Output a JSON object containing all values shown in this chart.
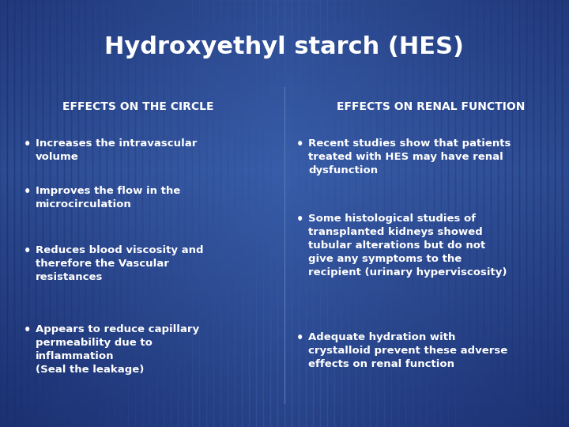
{
  "title": "Hydroxyethyl starch (HES)",
  "title_fontsize": 22,
  "title_color": "#FFFFFF",
  "title_fontweight": "bold",
  "left_header": "EFFECTS ON THE CIRCLE",
  "right_header": "EFFECTS ON RENAL FUNCTION",
  "header_fontsize": 10,
  "header_color": "#FFFFFF",
  "body_fontsize": 9.5,
  "body_color": "#FFFFFF",
  "left_bullets": [
    "Increases the intravascular\nvolume",
    "Improves the flow in the\nmicrocirculation",
    "Reduces blood viscosity and\ntherefore the Vascular\nresistances",
    "Appears to reduce capillary\npermeability due to\ninflammation\n(Seal the leakage)"
  ],
  "right_bullets": [
    "Recent studies show that patients\ntreated with HES may have renal\ndysfunction",
    "Some histological studies of\ntransplanted kidneys showed\ntubular alterations but do not\ngive any symptoms to the\nrecipient (urinary hyperviscosity)",
    "Adequate hydration with\ncrystalloid prevent these adverse\neffects on renal function"
  ],
  "bg_center_color": "#3a5faa",
  "bg_edge_color": "#1a2e6e",
  "divider_color": "#5a7ab8"
}
